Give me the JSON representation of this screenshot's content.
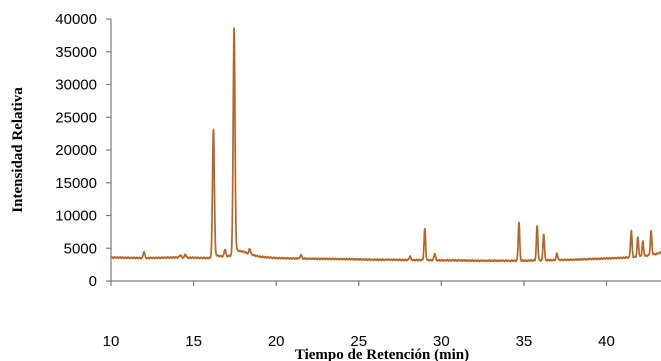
{
  "chart_data": {
    "type": "line",
    "title": "",
    "xlabel": "Tiempo de Retención (min)",
    "ylabel": "Intensidad Relativa",
    "xlim": [
      10,
      43.3
    ],
    "ylim": [
      0,
      40000
    ],
    "x_ticks": [
      10,
      15,
      20,
      25,
      30,
      35,
      40
    ],
    "y_ticks": [
      0,
      5000,
      10000,
      15000,
      20000,
      25000,
      30000,
      35000,
      40000
    ],
    "grid": false,
    "legend": "none",
    "line_color": "#b5652a",
    "series": [
      {
        "baseline": [
          [
            10,
            3600
          ],
          [
            11,
            3550
          ],
          [
            12,
            3500
          ],
          [
            13,
            3550
          ],
          [
            14,
            3600
          ],
          [
            15,
            3550
          ],
          [
            16,
            3500
          ],
          [
            17,
            3700
          ],
          [
            18,
            4300
          ],
          [
            19,
            3700
          ],
          [
            20,
            3500
          ],
          [
            21,
            3450
          ],
          [
            22,
            3400
          ],
          [
            23,
            3380
          ],
          [
            24,
            3350
          ],
          [
            25,
            3300
          ],
          [
            26,
            3250
          ],
          [
            27,
            3250
          ],
          [
            28,
            3200
          ],
          [
            29,
            3200
          ],
          [
            30,
            3150
          ],
          [
            31,
            3150
          ],
          [
            32,
            3100
          ],
          [
            33,
            3100
          ],
          [
            34,
            3100
          ],
          [
            35,
            3100
          ],
          [
            36,
            3150
          ],
          [
            37,
            3200
          ],
          [
            38,
            3250
          ],
          [
            39,
            3350
          ],
          [
            40,
            3450
          ],
          [
            41,
            3550
          ],
          [
            42,
            3700
          ],
          [
            43,
            4100
          ],
          [
            43.3,
            4400
          ]
        ],
        "peaks": [
          {
            "x": 12.0,
            "y": 4500
          },
          {
            "x": 14.2,
            "y": 4000
          },
          {
            "x": 14.5,
            "y": 4100
          },
          {
            "x": 16.2,
            "y": 23000
          },
          {
            "x": 16.9,
            "y": 4800
          },
          {
            "x": 17.45,
            "y": 37600
          },
          {
            "x": 18.4,
            "y": 4900
          },
          {
            "x": 21.5,
            "y": 4000
          },
          {
            "x": 28.1,
            "y": 3800
          },
          {
            "x": 29.0,
            "y": 7900
          },
          {
            "x": 29.6,
            "y": 4200
          },
          {
            "x": 34.7,
            "y": 9000
          },
          {
            "x": 35.8,
            "y": 8400
          },
          {
            "x": 36.2,
            "y": 7200
          },
          {
            "x": 37.0,
            "y": 4200
          },
          {
            "x": 41.5,
            "y": 7700
          },
          {
            "x": 41.9,
            "y": 6700
          },
          {
            "x": 42.2,
            "y": 6000
          },
          {
            "x": 42.7,
            "y": 7600
          }
        ]
      }
    ]
  }
}
